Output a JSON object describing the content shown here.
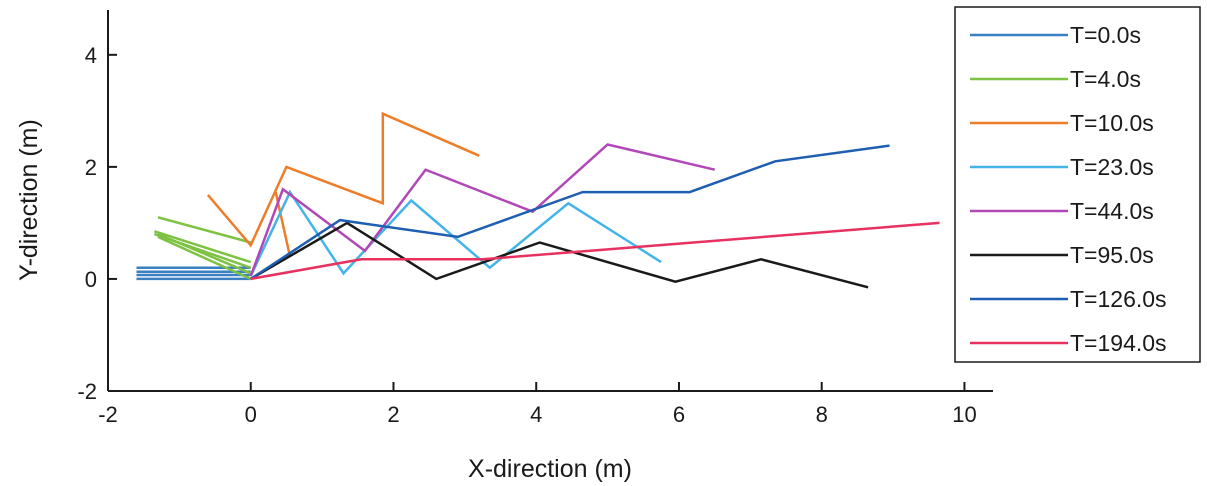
{
  "chart_data": {
    "type": "line",
    "xlabel": "X-direction (m)",
    "ylabel": "Y-direction (m)",
    "xlim": [
      -2,
      10.4
    ],
    "ylim": [
      -2,
      4.8
    ],
    "xticks": [
      -2,
      0,
      2,
      4,
      6,
      8,
      10
    ],
    "yticks": [
      -2,
      0,
      2,
      4
    ],
    "xtick_labels": [
      "-2",
      "0",
      "2",
      "4",
      "6",
      "8",
      "10"
    ],
    "ytick_labels": [
      "-2",
      "0",
      "2",
      "4"
    ],
    "grid": false,
    "legend_position": "top-right",
    "series": [
      {
        "name": "T=0.0s",
        "color": "#3a7fc1",
        "lines": [
          [
            [
              -1.6,
              0.2
            ],
            [
              0.0,
              0.2
            ]
          ],
          [
            [
              -1.6,
              0.13
            ],
            [
              0.0,
              0.13
            ]
          ],
          [
            [
              -1.6,
              0.07
            ],
            [
              0.0,
              0.07
            ]
          ],
          [
            [
              -1.6,
              0.0
            ],
            [
              0.0,
              0.0
            ]
          ]
        ]
      },
      {
        "name": "T=4.0s",
        "color": "#7dc242",
        "lines": [
          [
            [
              -1.3,
              1.1
            ],
            [
              0.0,
              0.65
            ]
          ],
          [
            [
              -1.35,
              0.85
            ],
            [
              0.0,
              0.3
            ]
          ],
          [
            [
              -1.35,
              0.8
            ],
            [
              0.0,
              0.2
            ]
          ],
          [
            [
              -1.3,
              0.8
            ],
            [
              0.0,
              0.1
            ]
          ],
          [
            [
              -1.3,
              0.75
            ],
            [
              0.0,
              0.0
            ]
          ]
        ]
      },
      {
        "name": "T=10.0s",
        "color": "#ee7d2a",
        "lines": [
          [
            [
              -0.6,
              1.5
            ],
            [
              0.0,
              0.6
            ],
            [
              0.5,
              2.0
            ],
            [
              1.85,
              1.35
            ],
            [
              1.85,
              2.95
            ],
            [
              3.2,
              2.2
            ]
          ],
          [
            [
              0.55,
              0.4
            ],
            [
              0.35,
              1.55
            ]
          ]
        ]
      },
      {
        "name": "T=23.0s",
        "color": "#44b4e8",
        "lines": [
          [
            [
              0.0,
              0.05
            ],
            [
              0.55,
              1.55
            ],
            [
              1.3,
              0.1
            ],
            [
              2.25,
              1.4
            ],
            [
              3.35,
              0.2
            ],
            [
              4.45,
              1.35
            ],
            [
              5.75,
              0.3
            ]
          ]
        ]
      },
      {
        "name": "T=44.0s",
        "color": "#b148b8",
        "lines": [
          [
            [
              0.0,
              0.05
            ],
            [
              0.45,
              1.6
            ],
            [
              1.6,
              0.5
            ],
            [
              2.45,
              1.95
            ],
            [
              3.95,
              1.2
            ],
            [
              5.0,
              2.4
            ],
            [
              6.5,
              1.95
            ]
          ]
        ]
      },
      {
        "name": "T=95.0s",
        "color": "#1a1a1a",
        "lines": [
          [
            [
              0.0,
              0.0
            ],
            [
              1.35,
              1.0
            ],
            [
              2.6,
              0.0
            ],
            [
              4.05,
              0.65
            ],
            [
              5.95,
              -0.05
            ],
            [
              7.15,
              0.35
            ],
            [
              8.65,
              -0.15
            ]
          ]
        ]
      },
      {
        "name": "T=126.0s",
        "color": "#1f5fb1",
        "lines": [
          [
            [
              0.0,
              0.0
            ],
            [
              1.25,
              1.05
            ],
            [
              2.9,
              0.75
            ],
            [
              4.65,
              1.55
            ],
            [
              6.15,
              1.55
            ],
            [
              7.35,
              2.1
            ],
            [
              8.95,
              2.38
            ]
          ]
        ]
      },
      {
        "name": "T=194.0s",
        "color": "#e8315f",
        "lines": [
          [
            [
              0.0,
              0.0
            ],
            [
              1.55,
              0.35
            ],
            [
              3.25,
              0.35
            ],
            [
              9.65,
              1.0
            ]
          ]
        ]
      }
    ]
  }
}
